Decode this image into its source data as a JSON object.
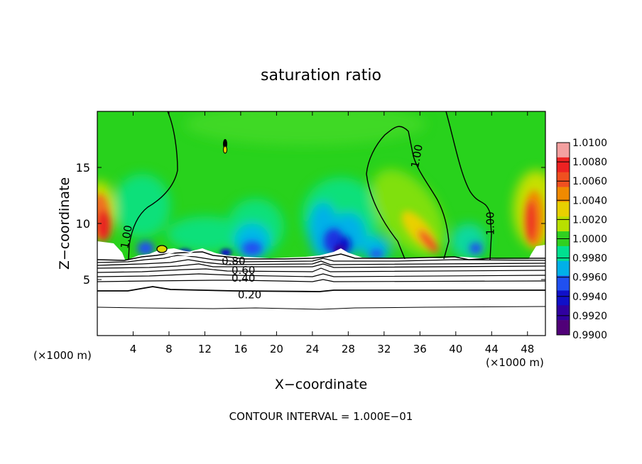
{
  "chart_data": {
    "type": "heatmap",
    "title": "saturation ratio",
    "xlabel": "X−coordinate",
    "ylabel": "Z−coordinate",
    "x_unit_left": "(×1000 m)",
    "x_unit_right": "(×1000 m)",
    "x_ticks": [
      4,
      8,
      12,
      16,
      20,
      24,
      28,
      32,
      36,
      40,
      44,
      48
    ],
    "y_ticks": [
      5,
      10,
      15
    ],
    "xlim": [
      0,
      50
    ],
    "ylim": [
      0,
      20
    ],
    "footer": "CONTOUR INTERVAL = 1.000E−01",
    "colorbar": {
      "labels": [
        "1.0100",
        "1.0080",
        "1.0060",
        "1.0040",
        "1.0020",
        "1.0000",
        "0.9980",
        "0.9960",
        "0.9940",
        "0.9920",
        "0.9900"
      ],
      "values": [
        1.01,
        1.008,
        1.006,
        1.004,
        1.002,
        1.0,
        0.998,
        0.996,
        0.994,
        0.992,
        0.99
      ],
      "colors": [
        "#f4a0a0",
        "#ee2222",
        "#f05020",
        "#f08a00",
        "#e8d000",
        "#b8e000",
        "#30d020",
        "#00e090",
        "#00b0e8",
        "#2050f0",
        "#1010c8",
        "#3000a0",
        "#500078"
      ]
    },
    "contour_labels": [
      {
        "text": "1.00",
        "x": 3.3,
        "z": 8.8,
        "rotate": -80
      },
      {
        "text": "1.00",
        "x": 35.7,
        "z": 16.0,
        "rotate": -80
      },
      {
        "text": "1.00",
        "x": 43.9,
        "z": 10.0,
        "rotate": -90
      },
      {
        "text": "0.80",
        "x": 15.2,
        "z": 6.6,
        "rotate": 0
      },
      {
        "text": "0.60",
        "x": 16.3,
        "z": 5.8,
        "rotate": 0
      },
      {
        "text": "0.40",
        "x": 16.3,
        "z": 5.1,
        "rotate": 0
      },
      {
        "text": "0.20",
        "x": 17.0,
        "z": 3.6,
        "rotate": 0
      }
    ]
  }
}
